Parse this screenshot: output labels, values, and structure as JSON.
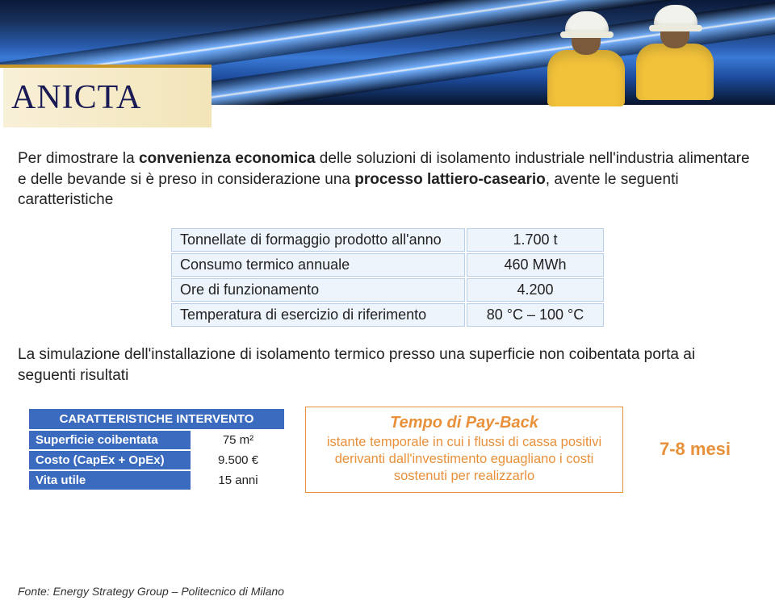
{
  "logo": "ANICTA",
  "intro": {
    "pre1": "Per dimostrare la ",
    "b1": "convenienza economica",
    "mid1": " delle soluzioni di isolamento industriale nell'industria alimentare e delle bevande si è preso in considerazione una ",
    "b2": "processo lattiero-caseario",
    "post1": ", avente le seguenti caratteristiche"
  },
  "spec": {
    "rows": [
      {
        "label": "Tonnellate di formaggio prodotto all'anno",
        "value": "1.700 t"
      },
      {
        "label": "Consumo termico annuale",
        "value": "460 MWh"
      },
      {
        "label": "Ore di funzionamento",
        "value": "4.200"
      },
      {
        "label": "Temperatura di esercizio di riferimento",
        "value": "80 °C – 100 °C"
      }
    ],
    "cell_bg": "#eef4fb",
    "cell_border": "#b9cfe8"
  },
  "sim_text": "La simulazione dell'installazione di isolamento termico presso una superficie non coibentata porta ai seguenti risultati",
  "intervento": {
    "header": "CARATTERISTICHE INTERVENTO",
    "rows": [
      {
        "label": "Superficie coibentata",
        "value": "75 m²"
      },
      {
        "label": "Costo (CapEx + OpEx)",
        "value": "9.500 €"
      },
      {
        "label": "Vita utile",
        "value": "15 anni"
      }
    ],
    "header_bg": "#3a6bbf"
  },
  "payback": {
    "title": "Tempo di Pay-Back",
    "desc": "istante temporale in cui i flussi di cassa positivi derivanti dall'investimento eguagliano i costi sostenuti per realizzarlo",
    "border": "#e8903a"
  },
  "months": "7-8 mesi",
  "footer": "Fonte: Energy Strategy Group – Politecnico di Milano"
}
